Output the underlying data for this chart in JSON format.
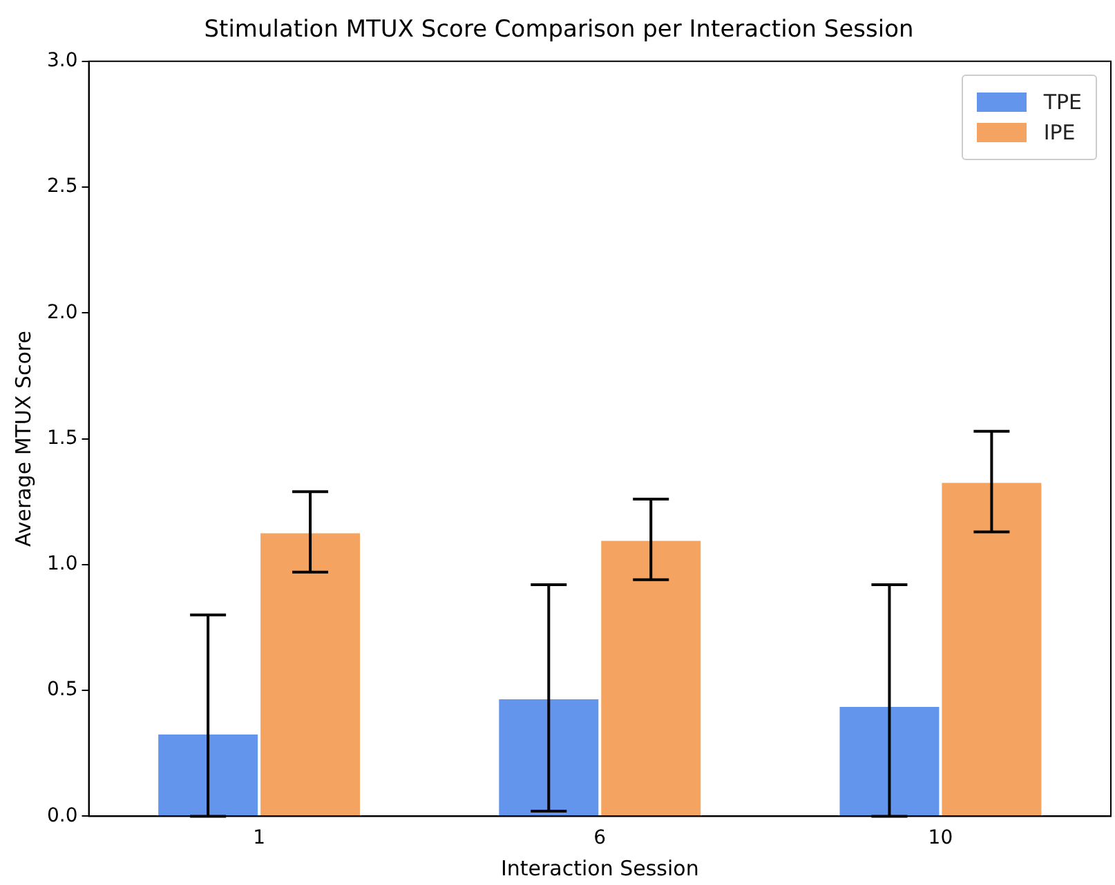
{
  "chart_data": {
    "type": "bar",
    "title": "Stimulation MTUX Score Comparison per Interaction Session",
    "xlabel": "Interaction Session",
    "ylabel": "Average MTUX Score",
    "categories": [
      "1",
      "6",
      "10"
    ],
    "series": [
      {
        "name": "TPE",
        "color": "#6495ed",
        "values": [
          0.33,
          0.47,
          0.44
        ],
        "errors": [
          [
            0,
            0.8
          ],
          0.45,
          [
            0,
            0.92
          ]
        ]
      },
      {
        "name": "IPE",
        "color": "#f4a460",
        "values": [
          1.13,
          1.1,
          1.33
        ],
        "errors": [
          0.16,
          0.16,
          0.2
        ]
      }
    ],
    "ylim": [
      0,
      3
    ],
    "yticks": [
      {
        "value": 0,
        "label": "0.0"
      },
      {
        "value": 0.5,
        "label": "0.5"
      },
      {
        "value": 1,
        "label": "1.0"
      },
      {
        "value": 1.5,
        "label": "1.5"
      },
      {
        "value": 2,
        "label": "2.0"
      },
      {
        "value": 2.5,
        "label": "2.5"
      },
      {
        "value": 3,
        "label": "3.0"
      }
    ],
    "grid": false,
    "legend": "top right"
  }
}
